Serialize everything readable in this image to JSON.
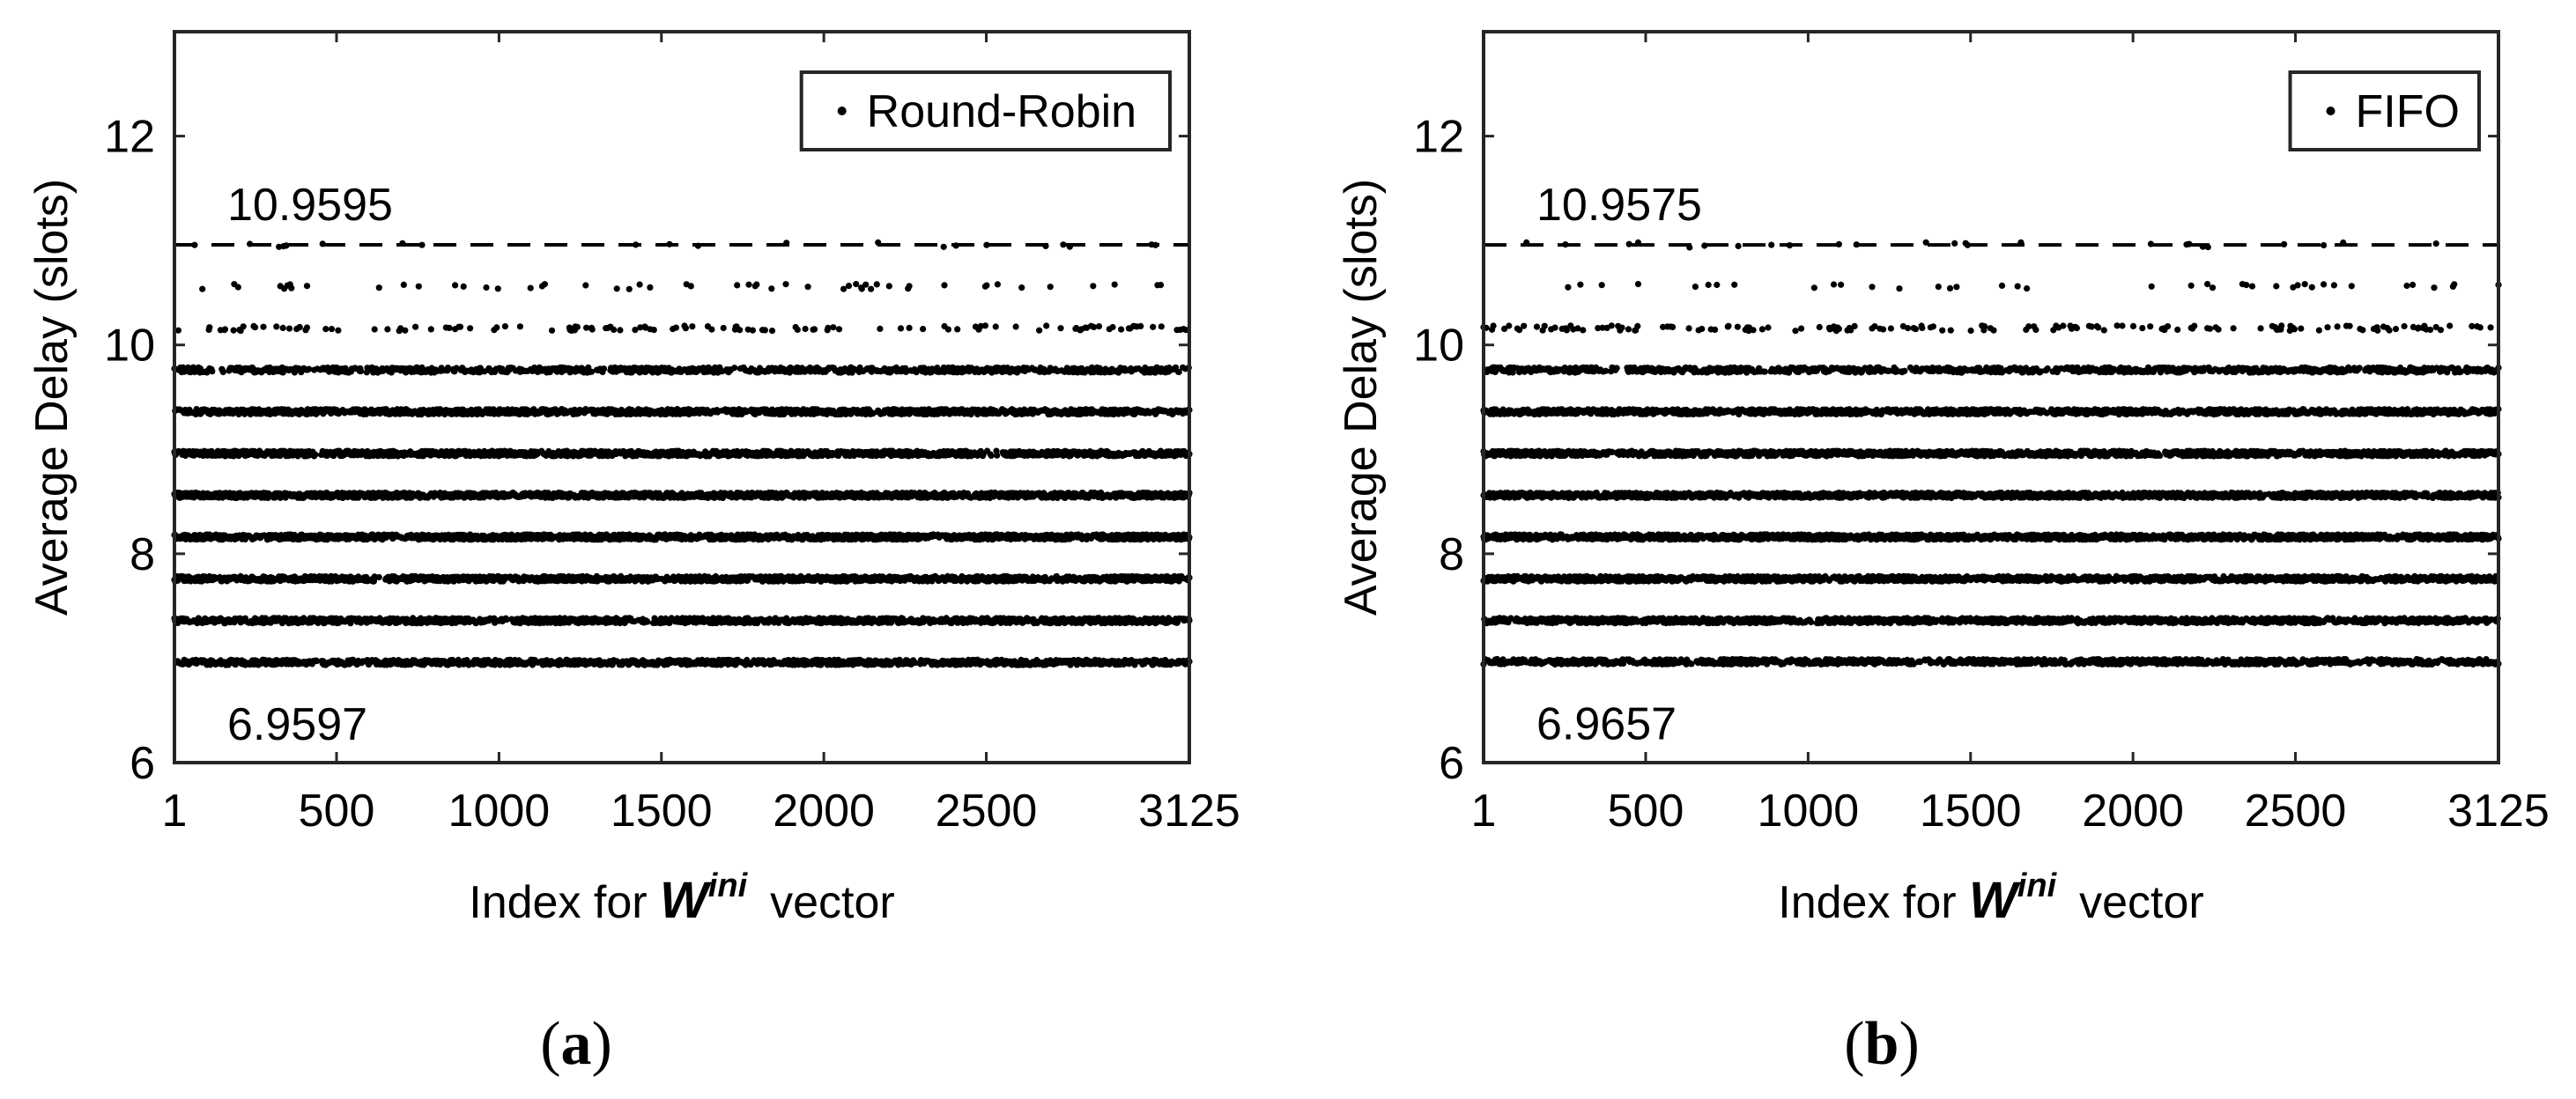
{
  "chart_data": [
    {
      "type": "scatter",
      "panel_label": "(a)",
      "legend": [
        "Round-Robin"
      ],
      "legend_placement": "top-right",
      "xlabel": {
        "prefix": "Index for ",
        "symbol": "W",
        "superscript": "ini",
        "suffix": "vector"
      },
      "ylabel": "Average Delay (slots)",
      "xlim": [
        1,
        3125
      ],
      "ylim": [
        6,
        13
      ],
      "xticks": [
        1,
        500,
        1000,
        1500,
        2000,
        2500,
        3125
      ],
      "xtick_labels": [
        "1",
        "500",
        "1000",
        "1500",
        "2000",
        "2500",
        "3125"
      ],
      "yticks": [
        6,
        8,
        10,
        12
      ],
      "ytick_labels": [
        "6",
        "8",
        "10",
        "12"
      ],
      "grid": false,
      "reference_lines": [
        {
          "y": 10.9595,
          "label": "10.9595",
          "style": "dashed"
        },
        {
          "y": 6.9597,
          "label": "6.9597",
          "style": "dashed"
        }
      ],
      "marker_color": "#000000",
      "point_count": 3125,
      "delay_levels": [
        {
          "y": 10.9595,
          "density": 0.012
        },
        {
          "y": 10.56,
          "density": 0.03
        },
        {
          "y": 10.16,
          "density": 0.1
        },
        {
          "y": 9.76,
          "density": 0.55
        },
        {
          "y": 9.36,
          "density": 0.85
        },
        {
          "y": 8.96,
          "density": 0.92
        },
        {
          "y": 8.56,
          "density": 0.97
        },
        {
          "y": 8.16,
          "density": 0.97
        },
        {
          "y": 7.76,
          "density": 0.88
        },
        {
          "y": 7.36,
          "density": 0.8
        },
        {
          "y": 6.9597,
          "density": 0.7
        }
      ]
    },
    {
      "type": "scatter",
      "panel_label": "(b)",
      "legend": [
        "FIFO"
      ],
      "legend_placement": "top-right",
      "xlabel": {
        "prefix": "Index for ",
        "symbol": "W",
        "superscript": "ini",
        "suffix": "vector"
      },
      "ylabel": "Average Delay (slots)",
      "xlim": [
        1,
        3125
      ],
      "ylim": [
        6,
        13
      ],
      "xticks": [
        1,
        500,
        1000,
        1500,
        2000,
        2500,
        3125
      ],
      "xtick_labels": [
        "1",
        "500",
        "1000",
        "1500",
        "2000",
        "2500",
        "3125"
      ],
      "yticks": [
        6,
        8,
        10,
        12
      ],
      "ytick_labels": [
        "6",
        "8",
        "10",
        "12"
      ],
      "grid": false,
      "reference_lines": [
        {
          "y": 10.9575,
          "label": "10.9575",
          "style": "dashed"
        },
        {
          "y": 6.9657,
          "label": "6.9657",
          "style": "dashed"
        }
      ],
      "marker_color": "#000000",
      "point_count": 3125,
      "delay_levels": [
        {
          "y": 10.9575,
          "density": 0.012
        },
        {
          "y": 10.56,
          "density": 0.03
        },
        {
          "y": 10.16,
          "density": 0.1
        },
        {
          "y": 9.76,
          "density": 0.55
        },
        {
          "y": 9.36,
          "density": 0.85
        },
        {
          "y": 8.96,
          "density": 0.92
        },
        {
          "y": 8.56,
          "density": 0.97
        },
        {
          "y": 8.16,
          "density": 0.97
        },
        {
          "y": 7.76,
          "density": 0.88
        },
        {
          "y": 7.36,
          "density": 0.8
        },
        {
          "y": 6.9657,
          "density": 0.7
        }
      ]
    }
  ]
}
